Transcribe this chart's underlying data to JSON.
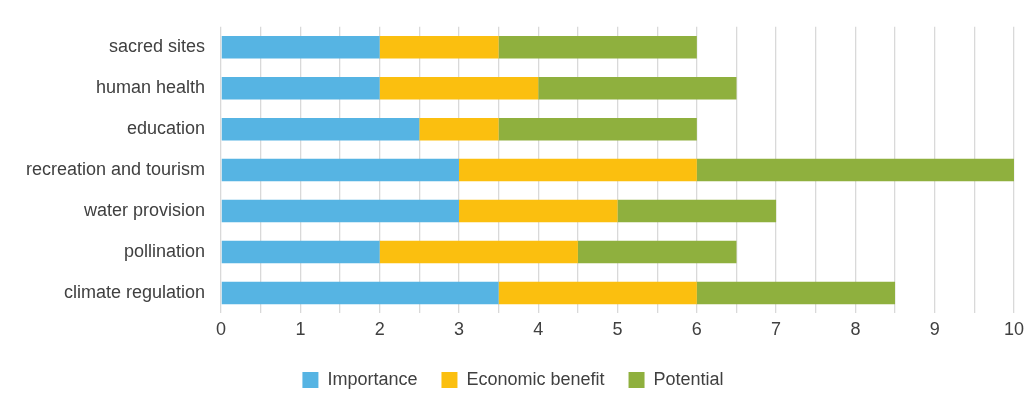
{
  "chart_data": {
    "type": "bar",
    "orientation": "horizontal",
    "stacked": true,
    "categories": [
      "sacred sites",
      "human health",
      "education",
      "recreation and tourism",
      "water provision",
      "pollination",
      "climate regulation"
    ],
    "series": [
      {
        "name": "Importance",
        "color": "#56b4e3",
        "values": [
          2,
          2,
          2.5,
          3,
          3,
          2,
          3.5
        ]
      },
      {
        "name": "Economic benefit",
        "color": "#fbbf0f",
        "values": [
          1.5,
          2,
          1,
          3,
          2,
          2.5,
          2.5
        ]
      },
      {
        "name": "Potential",
        "color": "#8fb03e",
        "values": [
          2.5,
          2.5,
          2.5,
          4,
          2,
          2,
          2.5
        ]
      }
    ],
    "xlim": [
      0,
      10
    ],
    "xticks": [
      0,
      {
        "value": 0.5,
        "label": null
      },
      1,
      {
        "value": 1.5,
        "label": null
      },
      2,
      {
        "value": 2.5,
        "label": null
      },
      3,
      {
        "value": 3.5,
        "label": null
      },
      4,
      {
        "value": 4.5,
        "label": null
      },
      5,
      {
        "value": 5.5,
        "label": null
      },
      6,
      {
        "value": 6.5,
        "label": null
      },
      7,
      {
        "value": 7.5,
        "label": null
      },
      8,
      {
        "value": 8.5,
        "label": null
      },
      9,
      {
        "value": 9.5,
        "label": null
      },
      10
    ],
    "grid": "x",
    "legend": "bottom"
  }
}
